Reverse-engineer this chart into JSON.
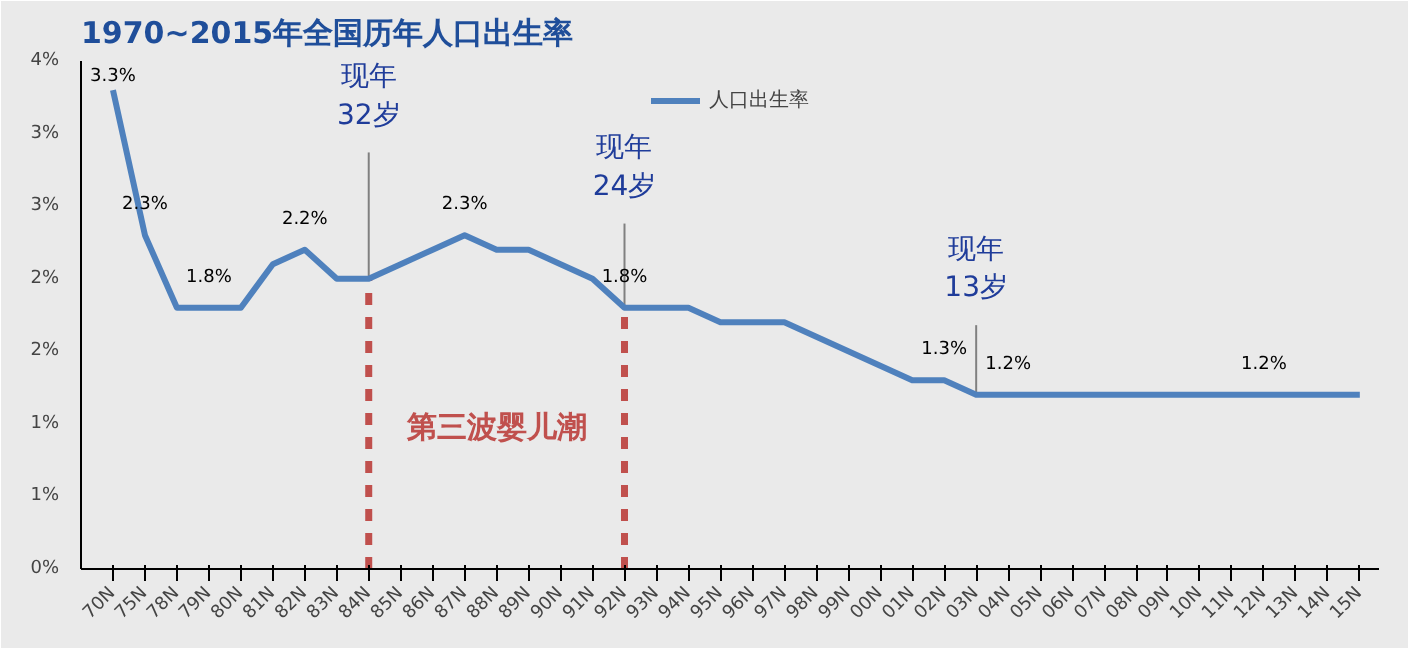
{
  "chart_data": {
    "type": "line",
    "title": "1970~2015年全国历年人口出生率",
    "categories": [
      "70N",
      "75N",
      "78N",
      "79N",
      "80N",
      "81N",
      "82N",
      "83N",
      "84N",
      "85N",
      "86N",
      "87N",
      "88N",
      "89N",
      "90N",
      "91N",
      "92N",
      "93N",
      "94N",
      "95N",
      "96N",
      "97N",
      "98N",
      "99N",
      "00N",
      "01N",
      "02N",
      "03N",
      "04N",
      "05N",
      "06N",
      "07N",
      "08N",
      "09N",
      "10N",
      "11N",
      "12N",
      "13N",
      "14N",
      "15N"
    ],
    "series": [
      {
        "name": "人口出生率",
        "color": "#4f81bd",
        "values": [
          3.3,
          2.3,
          1.8,
          1.8,
          1.8,
          2.1,
          2.2,
          2.0,
          2.0,
          2.1,
          2.2,
          2.3,
          2.2,
          2.2,
          2.1,
          2.0,
          1.8,
          1.8,
          1.8,
          1.7,
          1.7,
          1.7,
          1.6,
          1.5,
          1.4,
          1.3,
          1.3,
          1.2,
          1.2,
          1.2,
          1.2,
          1.2,
          1.2,
          1.2,
          1.2,
          1.2,
          1.2,
          1.2,
          1.2,
          1.2
        ],
        "value_labels": [
          "3.3%",
          "2.3%",
          null,
          "1.8%",
          null,
          null,
          "2.2%",
          null,
          null,
          null,
          null,
          "2.3%",
          null,
          null,
          null,
          null,
          "1.8%",
          null,
          null,
          null,
          null,
          null,
          null,
          null,
          null,
          null,
          "1.3%",
          null,
          "1.2%",
          null,
          null,
          null,
          null,
          null,
          null,
          null,
          "1.2%",
          null,
          null,
          null
        ]
      }
    ],
    "ylim": [
      0,
      3.5
    ],
    "yticks": [
      {
        "value": 0,
        "label": "0%"
      },
      {
        "value": 0.5,
        "label": "1%"
      },
      {
        "value": 1.0,
        "label": "1%"
      },
      {
        "value": 1.5,
        "label": "2%"
      },
      {
        "value": 2.0,
        "label": "2%"
      },
      {
        "value": 2.5,
        "label": "3%"
      },
      {
        "value": 3.0,
        "label": "3%"
      },
      {
        "value": 3.5,
        "label": "4%"
      }
    ],
    "legend": "top",
    "marker": "none",
    "line_style": "solid",
    "ref_lines": [
      {
        "axis": "x",
        "value": "84N",
        "label": "现年\n32岁",
        "color": "#c0504d",
        "line_style": "dashed"
      },
      {
        "axis": "x",
        "value": "92N",
        "label": "现年\n24岁",
        "color": "#c0504d",
        "line_style": "dashed"
      },
      {
        "axis": "x",
        "value": "03N",
        "label": "现年\n13岁",
        "color": "#808080",
        "line_style": "solid"
      }
    ],
    "annotations": [
      "第三波婴儿潮"
    ]
  }
}
